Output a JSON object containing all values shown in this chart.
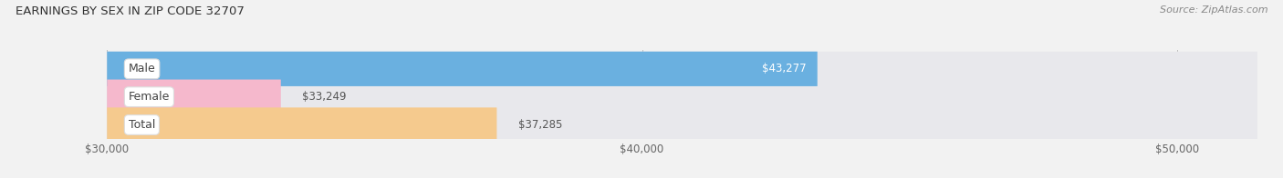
{
  "title": "EARNINGS BY SEX IN ZIP CODE 32707",
  "source": "Source: ZipAtlas.com",
  "categories": [
    "Male",
    "Female",
    "Total"
  ],
  "values": [
    43277,
    33249,
    37285
  ],
  "bar_colors": [
    "#6ab0e0",
    "#f5b8cc",
    "#f5ca8e"
  ],
  "bar_labels": [
    "$43,277",
    "$33,249",
    "$37,285"
  ],
  "xmin": 30000,
  "xmax": 51500,
  "xlim_left": 28000,
  "xlim_right": 51500,
  "xticks": [
    30000,
    40000,
    50000
  ],
  "xtick_labels": [
    "$30,000",
    "$40,000",
    "$50,000"
  ],
  "background_color": "#f2f2f2",
  "bar_bg_color": "#e8e8ec",
  "title_fontsize": 9.5,
  "source_fontsize": 8,
  "label_fontsize": 8.5,
  "tick_fontsize": 8.5,
  "bar_height": 0.62,
  "bar_gap": 0.18,
  "label_bg_color": "white",
  "male_label_color": "white",
  "other_label_color": "#555555"
}
